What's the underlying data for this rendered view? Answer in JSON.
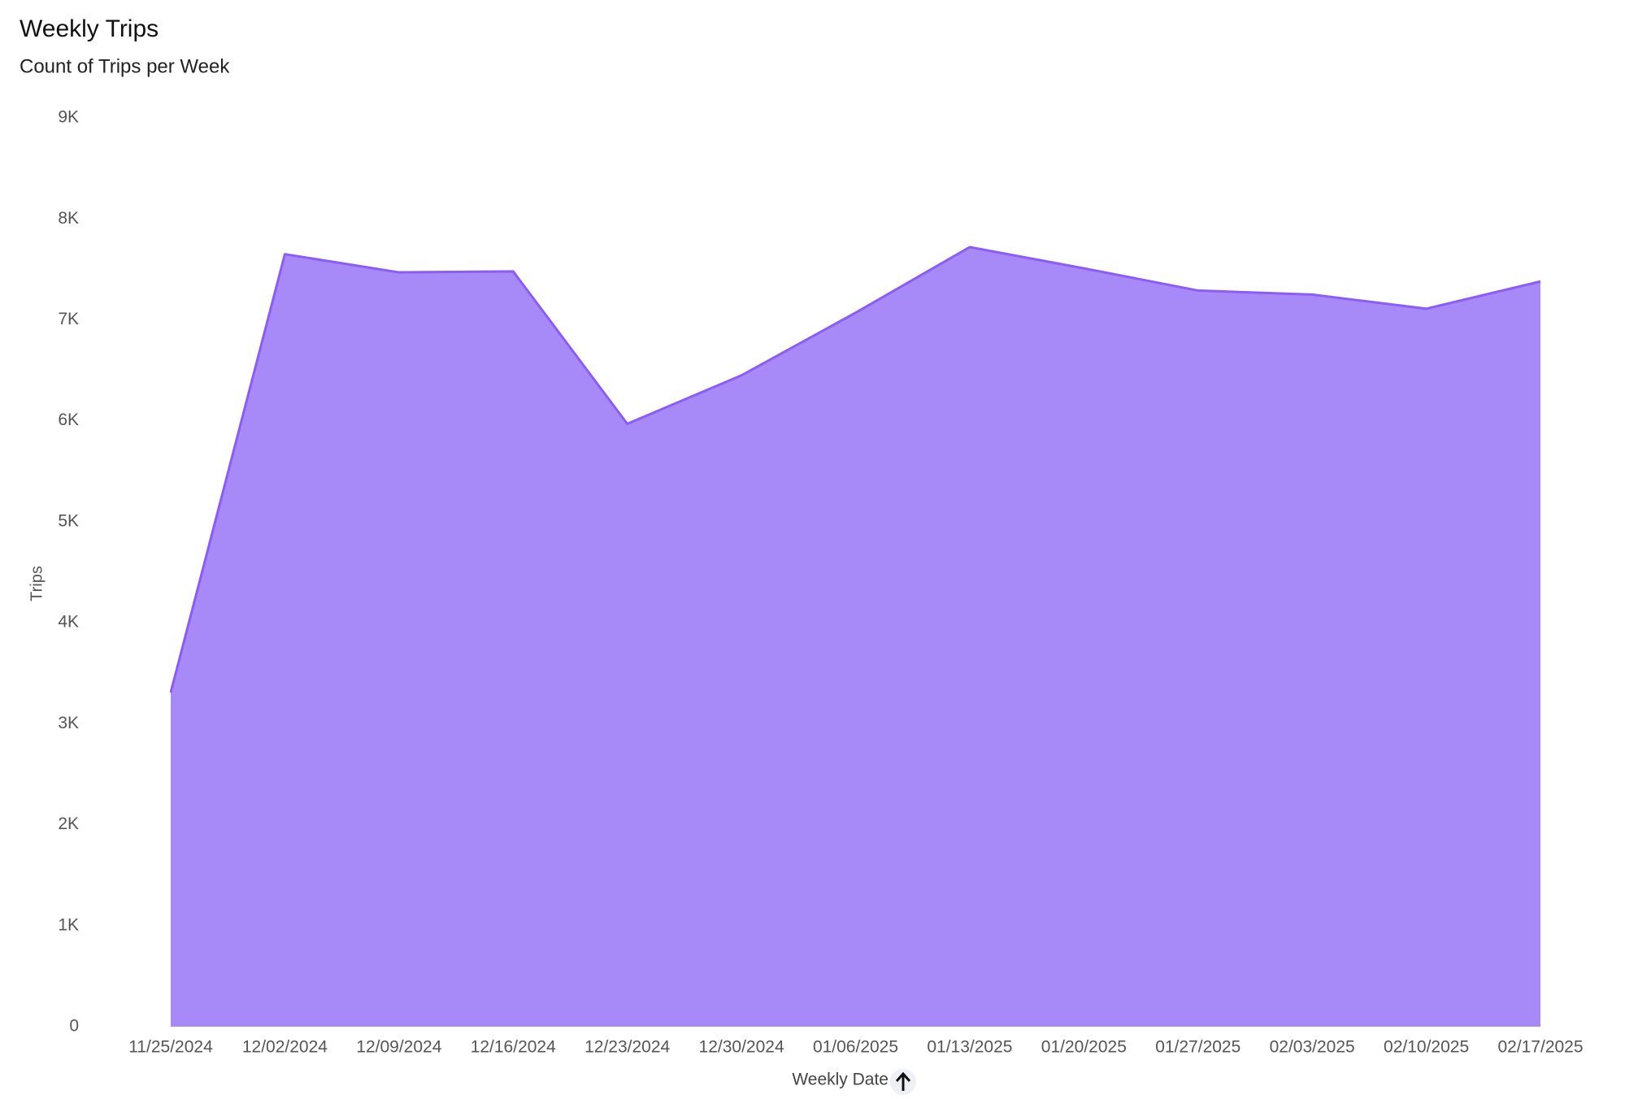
{
  "chart_data": {
    "type": "area",
    "title": "Weekly Trips",
    "subtitle": "Count of Trips per Week",
    "x_label": "Weekly Date",
    "y_label": "Trips",
    "categories": [
      "11/25/2024",
      "12/02/2024",
      "12/09/2024",
      "12/16/2024",
      "12/23/2024",
      "12/30/2024",
      "01/06/2025",
      "01/13/2025",
      "01/20/2025",
      "01/27/2025",
      "02/03/2025",
      "02/10/2025",
      "02/17/2025"
    ],
    "values": [
      3310,
      7650,
      7470,
      7480,
      5970,
      6450,
      7070,
      7720,
      7510,
      7290,
      7250,
      7110,
      7380
    ],
    "color": "#a889f8",
    "line_color": "#8b5cf6",
    "ylim": [
      0,
      9000
    ],
    "yticks": [
      0,
      {
        "value": 1000,
        "label": "1K"
      },
      {
        "value": 2000,
        "label": "2K"
      },
      {
        "value": 3000,
        "label": "3K"
      },
      {
        "value": 4000,
        "label": "4K"
      },
      {
        "value": 5000,
        "label": "5K"
      },
      {
        "value": 6000,
        "label": "6K"
      },
      {
        "value": 7000,
        "label": "7K"
      },
      {
        "value": 8000,
        "label": "8K"
      },
      {
        "value": 9000,
        "label": "9K"
      }
    ],
    "grid": false
  }
}
